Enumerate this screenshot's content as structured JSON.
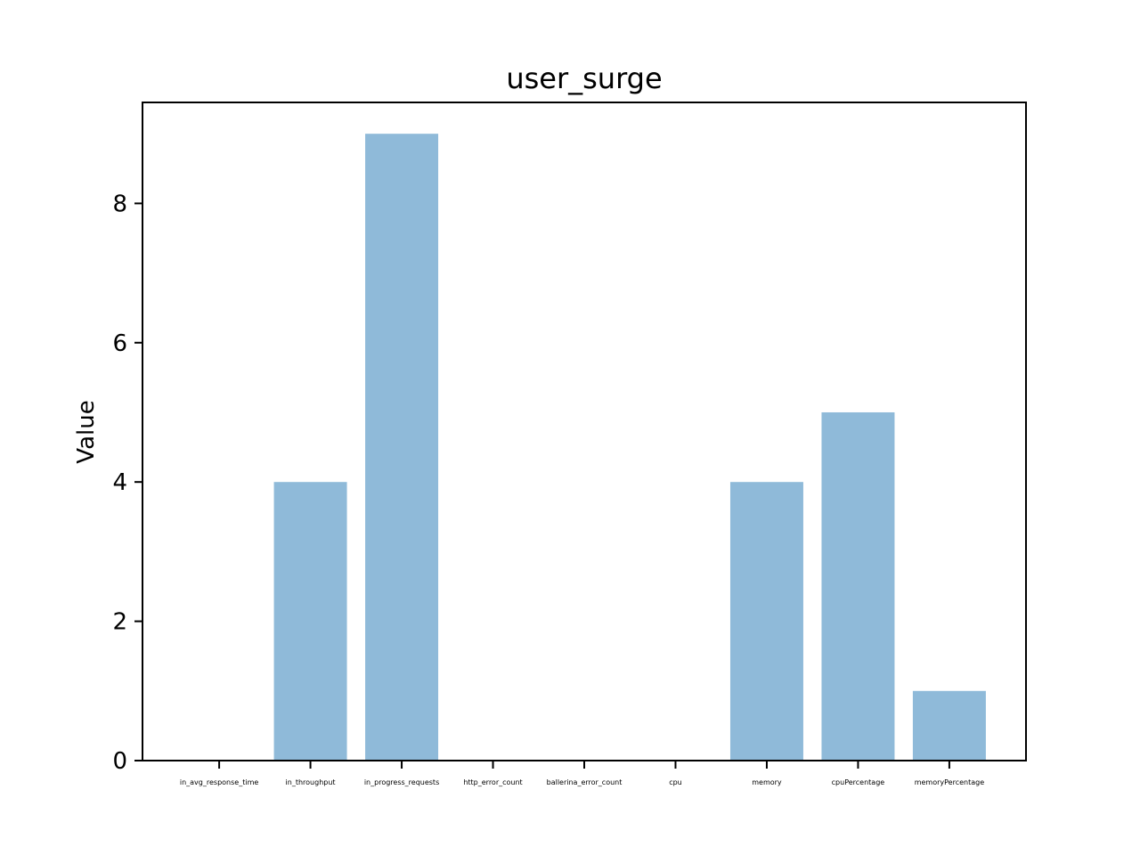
{
  "chart_data": {
    "type": "bar",
    "title": "user_surge",
    "xlabel": "",
    "ylabel": "Value",
    "categories": [
      "in_avg_response_time",
      "in_throughput",
      "in_progress_requests",
      "http_error_count",
      "ballerina_error_count",
      "cpu",
      "memory",
      "cpuPercentage",
      "memoryPercentage"
    ],
    "values": [
      0,
      4,
      9,
      0,
      0,
      0,
      4,
      5,
      1
    ],
    "ylim": [
      0,
      9.45
    ],
    "yticks": [
      "0",
      "2",
      "4",
      "6",
      "8"
    ],
    "bar_color": "#8fbad9",
    "grid": false,
    "legend": "none"
  }
}
